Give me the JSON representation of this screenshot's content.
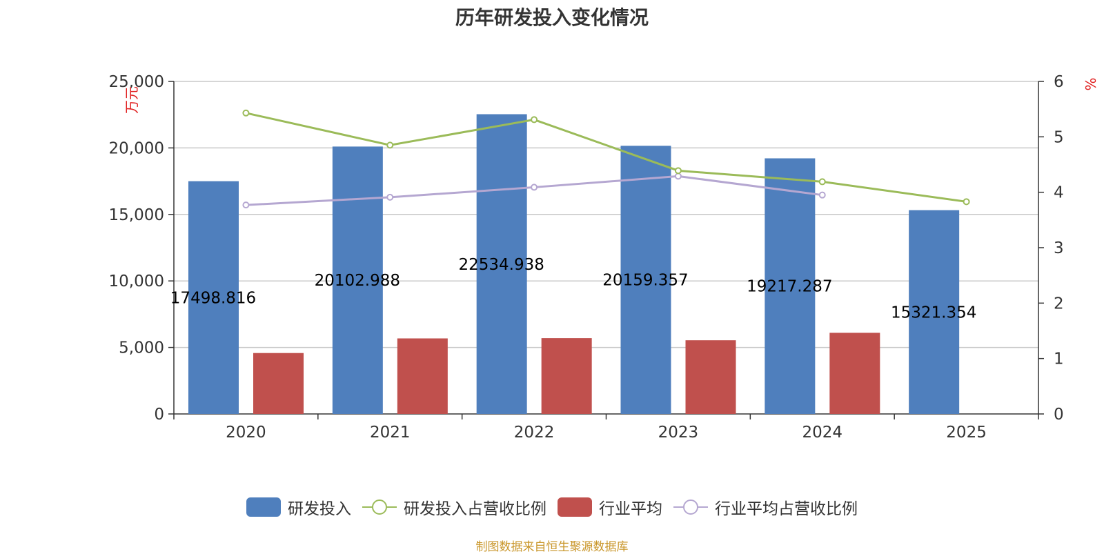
{
  "title": "历年研发投入变化情况",
  "source_note": "制图数据来自恒生聚源数据库",
  "colors": {
    "rd_bar": "#4f7fbd",
    "ind_bar": "#c0504d",
    "rd_line": "#9bbb59",
    "ind_line": "#b5a7d1",
    "axis_unit": "#e02020",
    "source": "#c9962a",
    "grid": "#c8c8c8",
    "text": "#333333"
  },
  "legend": [
    {
      "label": "研发投入",
      "kind": "bar",
      "color_key": "rd_bar"
    },
    {
      "label": "研发投入占营收比例",
      "kind": "line",
      "color_key": "rd_line"
    },
    {
      "label": "行业平均",
      "kind": "bar",
      "color_key": "ind_bar"
    },
    {
      "label": "行业平均占营收比例",
      "kind": "line",
      "color_key": "ind_line"
    }
  ],
  "chart_data": {
    "type": "bar",
    "categories": [
      "2020",
      "2021",
      "2022",
      "2023",
      "2024",
      "2025"
    ],
    "y_left": {
      "unit": "万元",
      "ylim": [
        0,
        25000
      ],
      "ticks": [
        0,
        5000,
        10000,
        15000,
        20000,
        25000
      ],
      "tick_labels": [
        "0",
        "5,000",
        "10,000",
        "15,000",
        "20,000",
        "25,000"
      ]
    },
    "y_right": {
      "unit": "%",
      "ylim": [
        0,
        6
      ],
      "ticks": [
        0,
        1,
        2,
        3,
        4,
        5,
        6
      ],
      "tick_labels": [
        "0",
        "1",
        "2",
        "3",
        "4",
        "5",
        "6"
      ]
    },
    "series": [
      {
        "name": "研发投入",
        "type": "bar",
        "axis": "left",
        "values": [
          17498.816,
          20102.988,
          22534.938,
          20159.357,
          19217.287,
          15321.354
        ],
        "labels": [
          "17498.816",
          "20102.988",
          "22534.938",
          "20159.357",
          "19217.287",
          "15321.354"
        ]
      },
      {
        "name": "行业平均",
        "type": "bar",
        "axis": "left",
        "values": [
          4580,
          5680,
          5700,
          5540,
          6100,
          null
        ]
      },
      {
        "name": "研发投入占营收比例",
        "type": "line",
        "axis": "right",
        "values": [
          5.43,
          4.85,
          5.31,
          4.39,
          4.19,
          3.83
        ]
      },
      {
        "name": "行业平均占营收比例",
        "type": "line",
        "axis": "right",
        "values": [
          3.77,
          3.91,
          4.09,
          4.29,
          3.95,
          null
        ]
      }
    ],
    "grid": true,
    "legend_position": "bottom"
  }
}
